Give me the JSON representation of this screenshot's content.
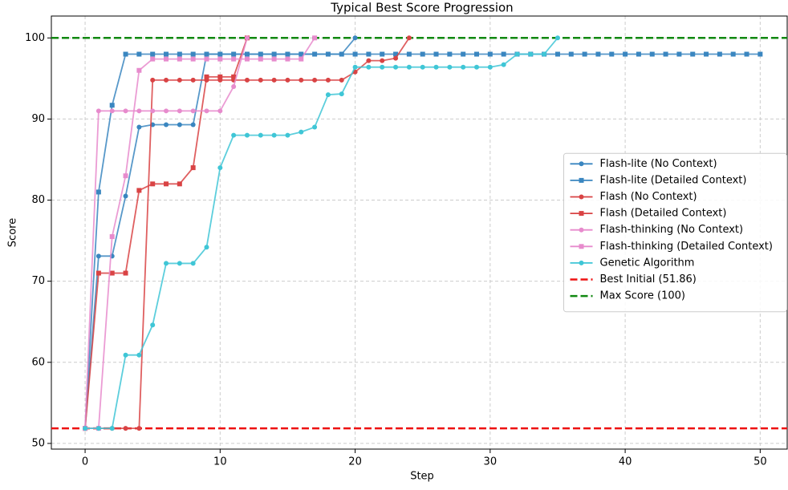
{
  "chart_data": {
    "type": "line",
    "title": "Typical Best Score Progression",
    "xlabel": "Step",
    "ylabel": "Score",
    "x": [
      0,
      1,
      2,
      3,
      4,
      5,
      6,
      7,
      8,
      9,
      10,
      11,
      12,
      13,
      14,
      15,
      16,
      17,
      18,
      19,
      20,
      21,
      22,
      23,
      24,
      25,
      26,
      27,
      28,
      29,
      30,
      31,
      32,
      33,
      34,
      35,
      36,
      37,
      38,
      39,
      40,
      41,
      42,
      43,
      44,
      45,
      46,
      47,
      48,
      49,
      50
    ],
    "xlim": [
      -2.5,
      52
    ],
    "xticks": [
      0,
      10,
      20,
      30,
      40,
      50
    ],
    "ylim": [
      49.3,
      102.7
    ],
    "yticks": [
      50,
      60,
      70,
      80,
      90,
      100
    ],
    "grid": true,
    "legend": "center right",
    "series": [
      {
        "name": "Flash-lite (No Context)",
        "color": "#3a86c0",
        "marker": "circle",
        "values": [
          51.86,
          73.1,
          73.1,
          80.5,
          89,
          89.3,
          89.3,
          89.3,
          89.3,
          98,
          98,
          98,
          98,
          98,
          98,
          98,
          98,
          98,
          98,
          98,
          100,
          null,
          null,
          null,
          null,
          null,
          null,
          null,
          null,
          null,
          null,
          null,
          null,
          null,
          null,
          null,
          null,
          null,
          null,
          null,
          null,
          null,
          null,
          null,
          null,
          null,
          null,
          null,
          null,
          null,
          null
        ]
      },
      {
        "name": "Flash-lite (Detailed Context)",
        "color": "#3a86c0",
        "marker": "square",
        "values": [
          51.86,
          81,
          91.7,
          98,
          98,
          98,
          98,
          98,
          98,
          98,
          98,
          98,
          98,
          98,
          98,
          98,
          98,
          98,
          98,
          98,
          98,
          98,
          98,
          98,
          98,
          98,
          98,
          98,
          98,
          98,
          98,
          98,
          98,
          98,
          98,
          98,
          98,
          98,
          98,
          98,
          98,
          98,
          98,
          98,
          98,
          98,
          98,
          98,
          98,
          98,
          98
        ]
      },
      {
        "name": "Flash (No Context)",
        "color": "#d94344",
        "marker": "circle",
        "values": [
          51.86,
          51.86,
          51.86,
          51.86,
          51.86,
          94.8,
          94.8,
          94.8,
          94.8,
          94.8,
          94.8,
          94.8,
          94.8,
          94.8,
          94.8,
          94.8,
          94.8,
          94.8,
          94.8,
          94.8,
          95.8,
          97.2,
          97.2,
          97.5,
          100,
          null,
          null,
          null,
          null,
          null,
          null,
          null,
          null,
          null,
          null,
          null,
          null,
          null,
          null,
          null,
          null,
          null,
          null,
          null,
          null,
          null,
          null,
          null,
          null,
          null,
          null
        ]
      },
      {
        "name": "Flash (Detailed Context)",
        "color": "#d94344",
        "marker": "square",
        "values": [
          51.86,
          71,
          71,
          71,
          81.2,
          82,
          82,
          82,
          84,
          95.2,
          95.2,
          95.2,
          100,
          null,
          null,
          null,
          null,
          null,
          null,
          null,
          null,
          null,
          null,
          null,
          null,
          null,
          null,
          null,
          null,
          null,
          null,
          null,
          null,
          null,
          null,
          null,
          null,
          null,
          null,
          null,
          null,
          null,
          null,
          null,
          null,
          null,
          null,
          null,
          null,
          null,
          null
        ]
      },
      {
        "name": "Flash-thinking (No Context)",
        "color": "#e78bcd",
        "marker": "circle",
        "values": [
          51.86,
          91,
          91,
          91,
          91,
          91,
          91,
          91,
          91,
          91,
          91,
          94,
          100,
          null,
          null,
          null,
          null,
          null,
          null,
          null,
          null,
          null,
          null,
          null,
          null,
          null,
          null,
          null,
          null,
          null,
          null,
          null,
          null,
          null,
          null,
          null,
          null,
          null,
          null,
          null,
          null,
          null,
          null,
          null,
          null,
          null,
          null,
          null,
          null,
          null,
          null
        ]
      },
      {
        "name": "Flash-thinking (Detailed Context)",
        "color": "#e78bcd",
        "marker": "square",
        "values": [
          51.86,
          51.86,
          75.5,
          83,
          96,
          97.4,
          97.4,
          97.4,
          97.4,
          97.4,
          97.4,
          97.4,
          97.4,
          97.4,
          97.4,
          97.4,
          97.4,
          100,
          null,
          null,
          null,
          null,
          null,
          null,
          null,
          null,
          null,
          null,
          null,
          null,
          null,
          null,
          null,
          null,
          null,
          null,
          null,
          null,
          null,
          null,
          null,
          null,
          null,
          null,
          null,
          null,
          null,
          null,
          null,
          null,
          null
        ]
      },
      {
        "name": "Genetic Algorithm",
        "color": "#3fc6d6",
        "marker": "circle",
        "values": [
          51.86,
          51.86,
          51.86,
          60.9,
          60.9,
          64.6,
          72.2,
          72.2,
          72.2,
          74.2,
          84,
          88,
          88,
          88,
          88,
          88,
          88.4,
          89,
          93,
          93.1,
          96.4,
          96.4,
          96.4,
          96.4,
          96.4,
          96.4,
          96.4,
          96.4,
          96.4,
          96.4,
          96.4,
          96.7,
          98,
          98,
          98,
          100,
          null,
          null,
          null,
          null,
          null,
          null,
          null,
          null,
          null,
          null,
          null,
          null,
          null,
          null,
          null
        ]
      }
    ],
    "hlines": [
      {
        "name": "Best Initial (51.86)",
        "color": "#ee1111",
        "value": 51.86
      },
      {
        "name": "Max Score (100)",
        "color": "#118811",
        "value": 100
      }
    ]
  }
}
